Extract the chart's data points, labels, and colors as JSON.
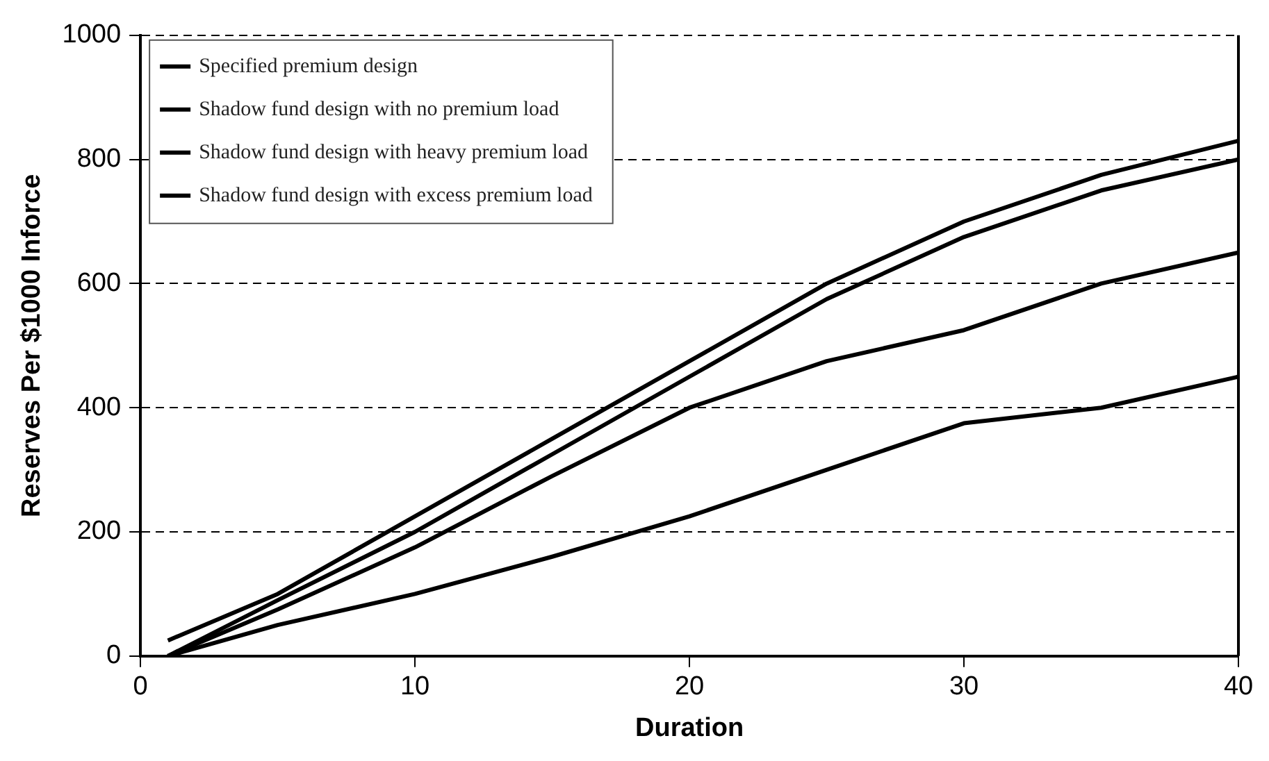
{
  "chart_data": {
    "type": "line",
    "xlabel": "Duration",
    "ylabel": "Reserves Per $1000 Inforce",
    "x": [
      1,
      5,
      10,
      15,
      20,
      25,
      30,
      35,
      40
    ],
    "series": [
      {
        "name": "Specified premium design",
        "color": "#000000",
        "values": [
          25,
          100,
          225,
          350,
          475,
          600,
          700,
          775,
          830
        ]
      },
      {
        "name": "Shadow fund design with no premium load",
        "color": "#000000",
        "values": [
          0,
          90,
          200,
          325,
          450,
          575,
          675,
          750,
          800
        ]
      },
      {
        "name": "Shadow fund design with heavy premium load",
        "color": "#000000",
        "values": [
          0,
          75,
          175,
          290,
          400,
          475,
          525,
          600,
          650
        ]
      },
      {
        "name": "Shadow fund design with excess premium load",
        "color": "#000000",
        "values": [
          0,
          50,
          100,
          160,
          225,
          300,
          375,
          400,
          450
        ]
      }
    ],
    "xlim": [
      0,
      40
    ],
    "xticks": [
      0,
      10,
      20,
      30,
      40
    ],
    "ylim": [
      0,
      1000
    ],
    "yticks": [
      0,
      200,
      400,
      600,
      800,
      1000
    ],
    "grid": "y",
    "legend": "top left",
    "marker": "none",
    "line_style": "solid"
  }
}
